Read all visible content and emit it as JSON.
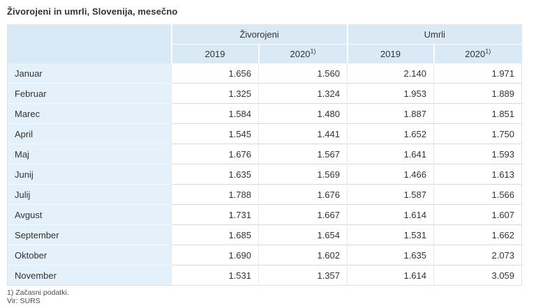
{
  "title": "Živorojeni in umrli, Slovenija, mesečno",
  "table": {
    "groups": [
      "Živorojeni",
      "Umrli"
    ],
    "years": [
      {
        "label": "2019",
        "sup": ""
      },
      {
        "label": "2020",
        "sup": "1)"
      },
      {
        "label": "2019",
        "sup": ""
      },
      {
        "label": "2020",
        "sup": "1)"
      }
    ],
    "rows": [
      {
        "month": "Januar",
        "values": [
          "1.656",
          "1.560",
          "2.140",
          "1.971"
        ]
      },
      {
        "month": "Februar",
        "values": [
          "1.325",
          "1.324",
          "1.953",
          "1.889"
        ]
      },
      {
        "month": "Marec",
        "values": [
          "1.584",
          "1.480",
          "1.887",
          "1.851"
        ]
      },
      {
        "month": "April",
        "values": [
          "1.545",
          "1.441",
          "1.652",
          "1.750"
        ]
      },
      {
        "month": "Maj",
        "values": [
          "1.676",
          "1.567",
          "1.641",
          "1.593"
        ]
      },
      {
        "month": "Junij",
        "values": [
          "1.635",
          "1.569",
          "1.466",
          "1.613"
        ]
      },
      {
        "month": "Julij",
        "values": [
          "1.788",
          "1.676",
          "1.587",
          "1.566"
        ]
      },
      {
        "month": "Avgust",
        "values": [
          "1.731",
          "1.667",
          "1.614",
          "1.607"
        ]
      },
      {
        "month": "September",
        "values": [
          "1.685",
          "1.654",
          "1.531",
          "1.662"
        ]
      },
      {
        "month": "Oktober",
        "values": [
          "1.690",
          "1.602",
          "1.635",
          "2.073"
        ]
      },
      {
        "month": "November",
        "values": [
          "1.531",
          "1.357",
          "1.614",
          "3.059"
        ]
      }
    ]
  },
  "footnotes": [
    "1) Začasni podatki.",
    "Vir: SURS"
  ],
  "colors": {
    "header_bg": "#d9eaf6",
    "label_bg": "#e4f0fa",
    "row_border": "#d9d9d9",
    "text": "#333333"
  }
}
